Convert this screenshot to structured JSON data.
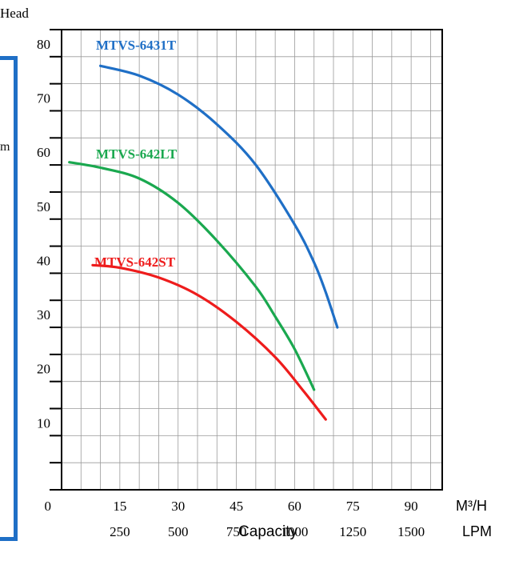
{
  "side_panel": {
    "label_fragment": "m"
  },
  "chart_data": {
    "type": "line",
    "title": "",
    "ylabel": "Head",
    "xlabel": "Capacity",
    "x_units": [
      "M³/H",
      "LPM"
    ],
    "ylim": [
      0,
      85
    ],
    "xlim": [
      0,
      98
    ],
    "grid": true,
    "y_ticks": [
      0,
      10,
      20,
      30,
      40,
      50,
      60,
      70,
      80
    ],
    "x_ticks_m3h": [
      15,
      30,
      45,
      60,
      75,
      90
    ],
    "x_ticks_lpm": [
      250,
      500,
      750,
      1000,
      1250,
      1500
    ],
    "series": [
      {
        "name": "MTVS-6431T",
        "color": "#1f6fc6",
        "x": [
          10,
          20,
          30,
          40,
          50,
          60,
          65,
          68,
          71
        ],
        "y": [
          78.3,
          76.5,
          73,
          67.5,
          60,
          49,
          42,
          36.5,
          30
        ]
      },
      {
        "name": "MTVS-642LT",
        "color": "#1aa84f",
        "x": [
          2,
          10,
          20,
          30,
          40,
          50,
          55,
          60,
          65
        ],
        "y": [
          60.5,
          59.5,
          57.5,
          53,
          46,
          37.5,
          32,
          26,
          18.5
        ]
      },
      {
        "name": "MTVS-642ST",
        "color": "#ee1c1c",
        "x": [
          8,
          15,
          25,
          35,
          45,
          55,
          62,
          68
        ],
        "y": [
          41.5,
          41,
          39.2,
          36,
          31,
          24.5,
          18.5,
          13
        ]
      }
    ]
  }
}
